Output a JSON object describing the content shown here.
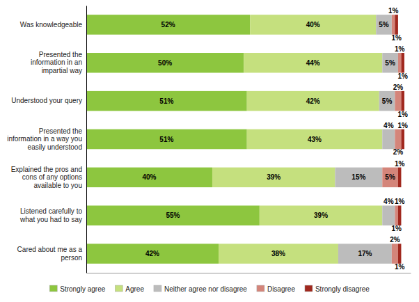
{
  "chart_data": {
    "type": "bar",
    "orientation": "horizontal",
    "stacked": true,
    "data_labels": true,
    "grid": false,
    "legend": "bottom",
    "tick_labels": "y",
    "categories": [
      "Was knowledgeable",
      "Presented the\ninformation in an\nimpartial way",
      "Understood your query",
      "Presented the\ninformation in a way you\neasily understood",
      "Explained the pros and\ncons of any options\navailable to you",
      "Listened carefully to\nwhat you had to say",
      "Cared about me as a\nperson"
    ],
    "xlim": [
      0,
      103
    ],
    "series": [
      {
        "name": "Strongly agree",
        "color": "#8DC63F",
        "values": [
          52,
          50,
          51,
          51,
          40,
          55,
          42
        ],
        "value_labels": [
          "52%",
          "50%",
          "51%",
          "51%",
          "40%",
          "55%",
          "42%"
        ]
      },
      {
        "name": "Agree",
        "color": "#C5E07E",
        "values": [
          40,
          44,
          42,
          43,
          39,
          39,
          38
        ],
        "value_labels": [
          "40%",
          "44%",
          "42%",
          "43%",
          "39%",
          "39%",
          "38%"
        ]
      },
      {
        "name": "Neither agree nor disagree",
        "color": "#BCBCBC",
        "values": [
          5,
          5,
          5,
          4,
          15,
          4,
          17
        ],
        "value_labels": [
          "5%",
          "5%",
          "5%",
          "4%",
          "15%",
          "4%",
          "17%"
        ]
      },
      {
        "name": "Disagree",
        "color": "#D4857A",
        "values": [
          1,
          1,
          2,
          2,
          5,
          1,
          2
        ],
        "value_labels": [
          "1%",
          "1%",
          "2%",
          "2%",
          "5%",
          "1%",
          "2%"
        ]
      },
      {
        "name": "Strongly disagree",
        "color": "#A0281E",
        "values": [
          1,
          1,
          1,
          1,
          1,
          1,
          1
        ],
        "value_labels": [
          "1%",
          "1%",
          "1%",
          "1%",
          "1%",
          "1%",
          "1%"
        ]
      }
    ]
  }
}
